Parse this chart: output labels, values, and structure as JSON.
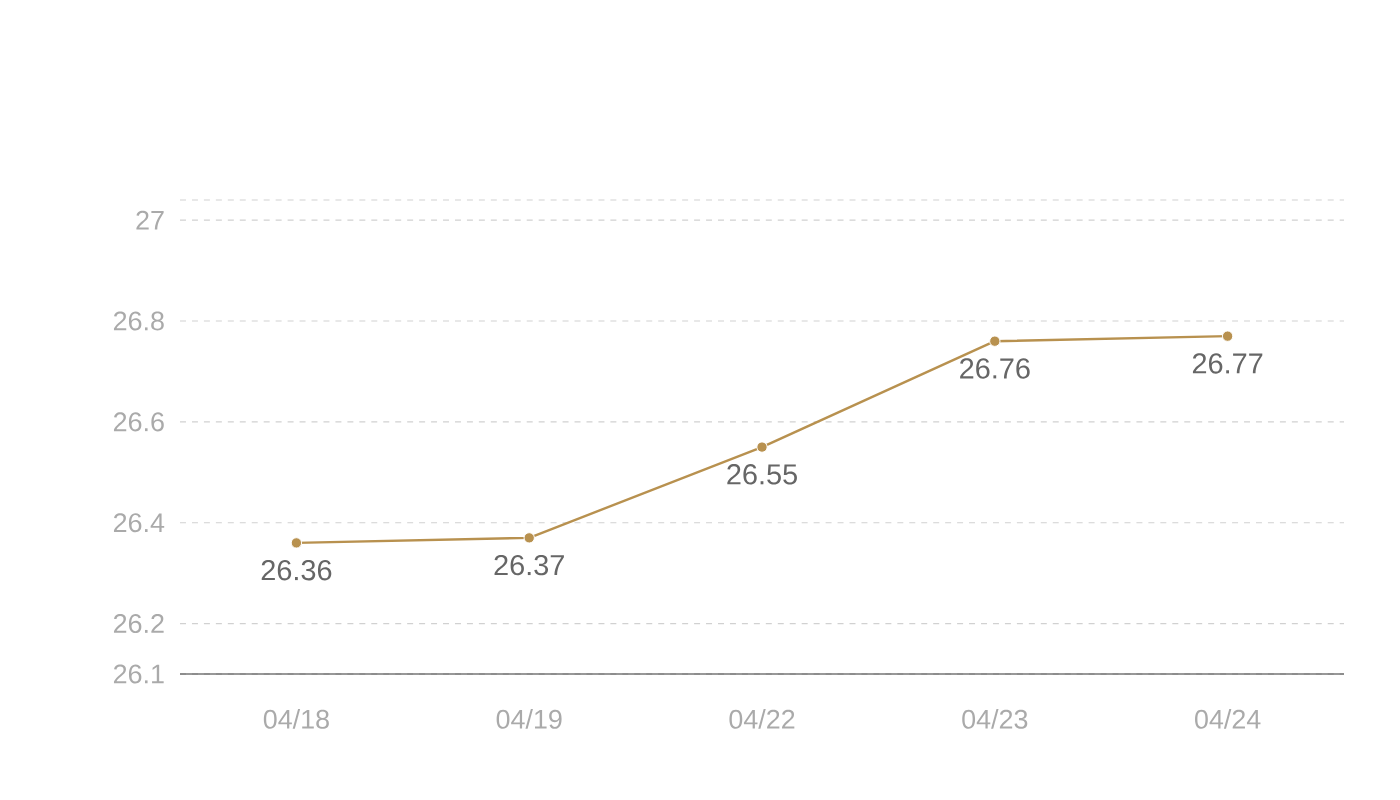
{
  "chart_data": {
    "type": "line",
    "categories": [
      "04/18",
      "04/19",
      "04/22",
      "04/23",
      "04/24"
    ],
    "series": [
      {
        "color": "#b8914f",
        "values": [
          26.36,
          26.37,
          26.55,
          26.76,
          26.77
        ]
      }
    ],
    "ylim": [
      26.1,
      27.04
    ],
    "yticks": [
      26.1,
      26.2,
      26.4,
      26.6,
      26.8,
      27,
      {
        "value": 27.04,
        "label": null
      }
    ],
    "grid": "y",
    "marker": "circle",
    "line_style": "solid",
    "data_labels": true
  }
}
